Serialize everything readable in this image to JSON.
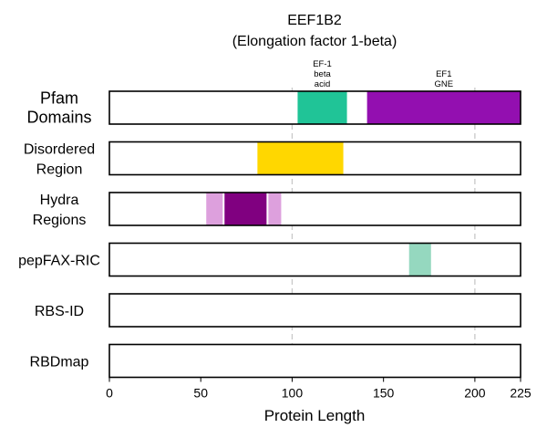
{
  "chart_data": {
    "type": "bar",
    "title": "EEF1B2",
    "subtitle": "(Elongation factor 1-beta)",
    "xlabel": "Protein Length",
    "xlim": [
      0,
      225
    ],
    "xticks": [
      0,
      50,
      100,
      150,
      200,
      225
    ],
    "gridlines_x": [
      100,
      200
    ],
    "rows": [
      {
        "label_lines": [
          "Pfam",
          "Domains"
        ],
        "emphasis": true,
        "segments": [
          {
            "start": 103,
            "end": 130,
            "color": "#20c497",
            "annotation_lines": [
              "EF-1",
              "beta",
              "acid"
            ]
          },
          {
            "start": 141,
            "end": 225,
            "color": "#930fb0",
            "annotation_lines": [
              "EF1",
              "GNE"
            ]
          }
        ]
      },
      {
        "label_lines": [
          "Disordered",
          "Region"
        ],
        "segments": [
          {
            "start": 81,
            "end": 128,
            "color": "#ffd700"
          }
        ]
      },
      {
        "label_lines": [
          "Hydra",
          "Regions"
        ],
        "segments": [
          {
            "start": 53,
            "end": 62,
            "color": "#dda0dd"
          },
          {
            "start": 63,
            "end": 86,
            "color": "#800080"
          },
          {
            "start": 87,
            "end": 94,
            "color": "#dda0dd"
          }
        ]
      },
      {
        "label_lines": [
          "pepFAX-RIC"
        ],
        "segments": [
          {
            "start": 164,
            "end": 176,
            "color": "#95d8bf"
          }
        ]
      },
      {
        "label_lines": [
          "RBS-ID"
        ],
        "segments": []
      },
      {
        "label_lines": [
          "RBDmap"
        ],
        "segments": []
      }
    ]
  }
}
